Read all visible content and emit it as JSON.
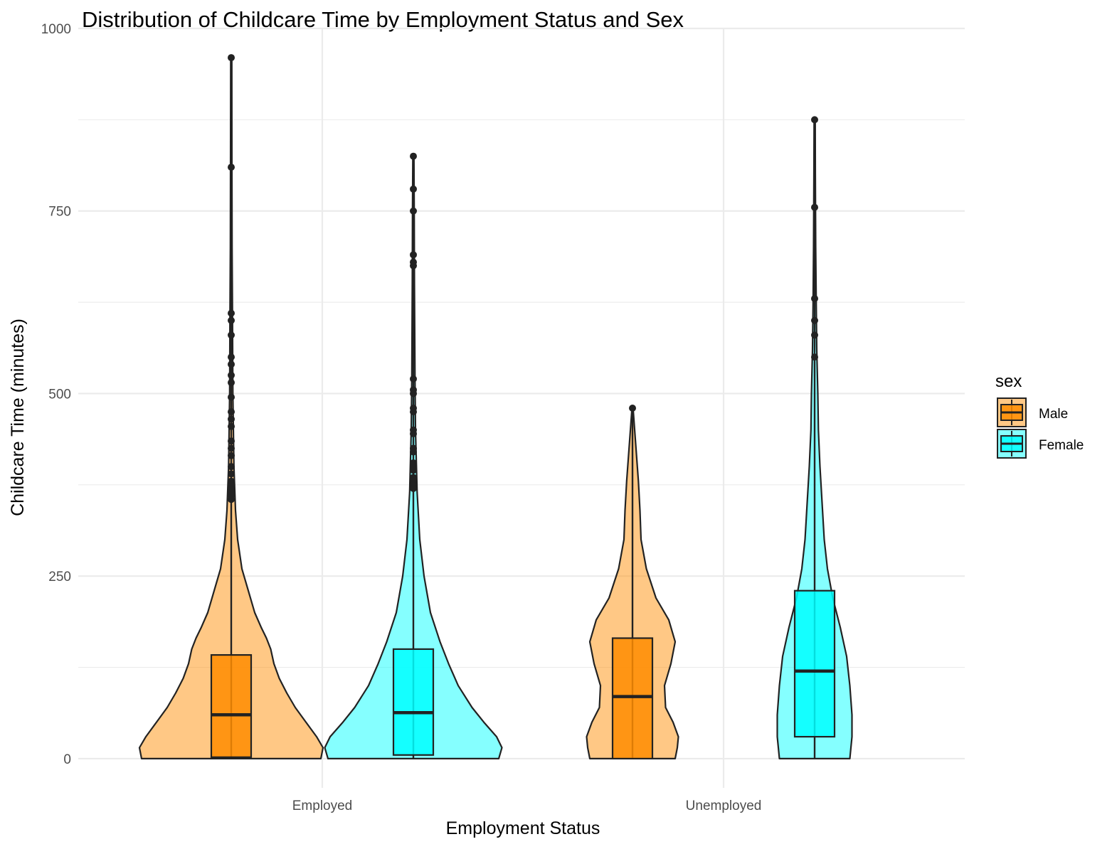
{
  "chart_data": {
    "type": "violin",
    "title": "Distribution of Childcare Time by Employment Status and Sex",
    "xlabel": "Employment Status",
    "ylabel": "Childcare Time (minutes)",
    "categories": [
      "Employed",
      "Unemployed"
    ],
    "ylim": [
      -40,
      1000
    ],
    "yticks": [
      0,
      250,
      500,
      750,
      1000
    ],
    "grid": true,
    "legend": {
      "title": "sex",
      "position": "right"
    },
    "series": [
      {
        "name": "Male",
        "color": "#FF8C00",
        "groups": [
          {
            "category": "Employed",
            "min": 0,
            "q1": 2,
            "median": 60,
            "q3": 142,
            "whisker_high": 340,
            "max": 960,
            "outliers": [
              960,
              810,
              610,
              600,
              580,
              550,
              540,
              525,
              515,
              495,
              475,
              465,
              455,
              435,
              425,
              415,
              400,
              390,
              380,
              375,
              370,
              365,
              360,
              355
            ],
            "density": [
              [
                0,
                0.84
              ],
              [
                15,
                0.86
              ],
              [
                30,
                0.8
              ],
              [
                50,
                0.7
              ],
              [
                70,
                0.6
              ],
              [
                90,
                0.52
              ],
              [
                110,
                0.45
              ],
              [
                130,
                0.4
              ],
              [
                150,
                0.37
              ],
              [
                165,
                0.33
              ],
              [
                180,
                0.28
              ],
              [
                200,
                0.22
              ],
              [
                230,
                0.16
              ],
              [
                260,
                0.1
              ],
              [
                300,
                0.06
              ],
              [
                340,
                0.04
              ],
              [
                400,
                0.025
              ],
              [
                500,
                0.015
              ],
              [
                600,
                0.012
              ],
              [
                700,
                0.008
              ],
              [
                850,
                0.006
              ],
              [
                960,
                0.005
              ]
            ]
          },
          {
            "category": "Unemployed",
            "min": 0,
            "q1": 0,
            "median": 85,
            "q3": 165,
            "whisker_high": 335,
            "max": 480,
            "outliers": [
              480
            ],
            "density": [
              [
                0,
                0.4
              ],
              [
                15,
                0.42
              ],
              [
                30,
                0.43
              ],
              [
                50,
                0.38
              ],
              [
                70,
                0.31
              ],
              [
                100,
                0.3
              ],
              [
                130,
                0.36
              ],
              [
                160,
                0.4
              ],
              [
                190,
                0.34
              ],
              [
                220,
                0.22
              ],
              [
                260,
                0.13
              ],
              [
                300,
                0.08
              ],
              [
                340,
                0.07
              ],
              [
                380,
                0.055
              ],
              [
                420,
                0.035
              ],
              [
                460,
                0.015
              ],
              [
                480,
                0.005
              ]
            ]
          }
        ]
      },
      {
        "name": "Female",
        "color": "#00FFFF",
        "groups": [
          {
            "category": "Employed",
            "min": 0,
            "q1": 5,
            "median": 63,
            "q3": 150,
            "whisker_high": 365,
            "max": 825,
            "outliers": [
              825,
              780,
              750,
              690,
              680,
              675,
              520,
              505,
              500,
              480,
              475,
              450,
              445,
              425,
              420,
              405,
              400,
              395,
              385,
              380,
              375,
              370
            ],
            "density": [
              [
                0,
                0.8
              ],
              [
                15,
                0.83
              ],
              [
                30,
                0.78
              ],
              [
                50,
                0.66
              ],
              [
                70,
                0.55
              ],
              [
                100,
                0.42
              ],
              [
                130,
                0.33
              ],
              [
                160,
                0.25
              ],
              [
                200,
                0.16
              ],
              [
                250,
                0.1
              ],
              [
                300,
                0.06
              ],
              [
                365,
                0.035
              ],
              [
                450,
                0.02
              ],
              [
                520,
                0.015
              ],
              [
                650,
                0.01
              ],
              [
                750,
                0.008
              ],
              [
                825,
                0.005
              ]
            ]
          },
          {
            "category": "Unemployed",
            "min": 0,
            "q1": 30,
            "median": 120,
            "q3": 230,
            "whisker_high": 490,
            "max": 875,
            "outliers": [
              875,
              755,
              630,
              600,
              580,
              550
            ],
            "density": [
              [
                0,
                0.33
              ],
              [
                30,
                0.35
              ],
              [
                60,
                0.35
              ],
              [
                100,
                0.33
              ],
              [
                140,
                0.3
              ],
              [
                180,
                0.24
              ],
              [
                220,
                0.17
              ],
              [
                260,
                0.12
              ],
              [
                300,
                0.09
              ],
              [
                350,
                0.07
              ],
              [
                400,
                0.05
              ],
              [
                450,
                0.035
              ],
              [
                500,
                0.03
              ],
              [
                560,
                0.02
              ],
              [
                620,
                0.015
              ],
              [
                700,
                0.01
              ],
              [
                800,
                0.007
              ],
              [
                875,
                0.005
              ]
            ]
          }
        ]
      }
    ]
  }
}
